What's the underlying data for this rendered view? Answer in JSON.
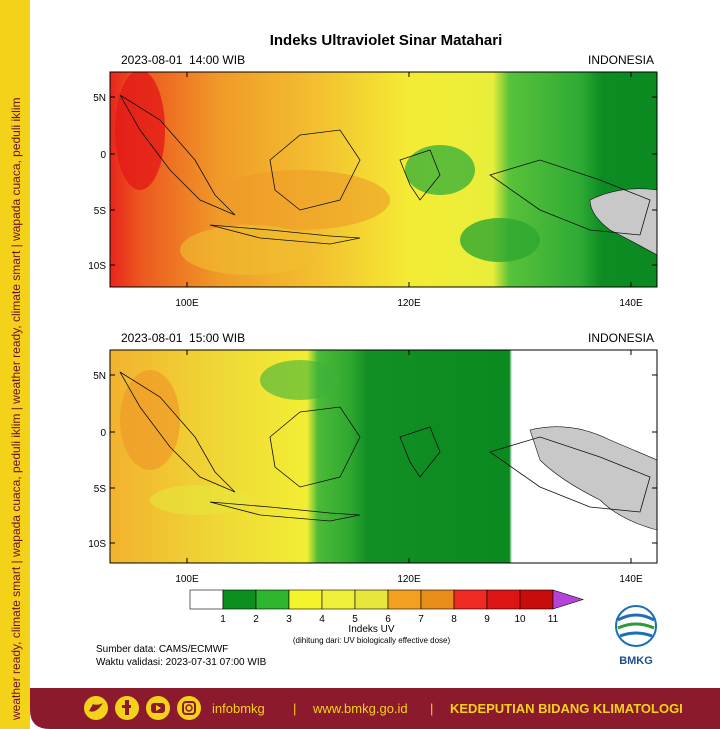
{
  "title": "Indeks Ultraviolet Sinar Matahari",
  "side_text": "weather ready, climate smart | wapada cuaca, peduli iklim | weather ready, climate smart | wapada cuaca, peduli iklim",
  "panels": [
    {
      "time": "2023-08-01  14:00 WIB",
      "region": "INDONESIA"
    },
    {
      "time": "2023-08-01  15:00 WIB",
      "region": "INDONESIA"
    }
  ],
  "axes": {
    "y_labels": [
      "5N",
      "0",
      "5S",
      "10S"
    ],
    "x_labels": [
      "100E",
      "120E",
      "140E"
    ]
  },
  "colorbar": {
    "labels": [
      1,
      2,
      3,
      4,
      5,
      6,
      7,
      8,
      9,
      10,
      11
    ],
    "colors": [
      "#ffffff",
      "#0b8f1d",
      "#2db52d",
      "#f4f42c",
      "#eef03a",
      "#e6e63c",
      "#f2a01e",
      "#e88c1a",
      "#ee2a22",
      "#dd1414",
      "#c80c0c"
    ],
    "over_color": "#b444d8",
    "title": "Indeks UV",
    "note": "(dihitung dari: UV biologically effective dose)"
  },
  "source": "Sumber data: CAMS/ECMWF",
  "validity": "Waktu validasi: 2023-07-31 07:00 WIB",
  "logo": "BMKG",
  "footer": {
    "social": "infobmkg",
    "separator": "|",
    "website": "www.bmkg.go.id",
    "department": "KEDEPUTIAN BIDANG KLIMATOLOGI"
  }
}
